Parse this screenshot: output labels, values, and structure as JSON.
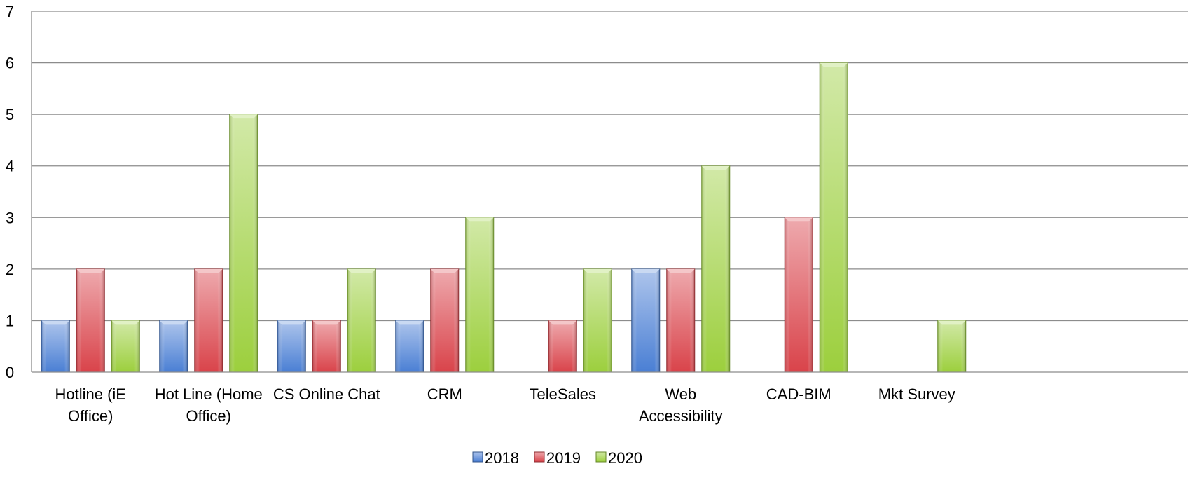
{
  "chart_data": {
    "type": "bar",
    "categories": [
      [
        "Hotline (iE",
        "Office)"
      ],
      [
        "Hot Line (Home",
        "Office)"
      ],
      [
        "CS Online Chat"
      ],
      [
        "CRM"
      ],
      [
        "TeleSales"
      ],
      [
        "Web",
        "Accessibility"
      ],
      [
        "CAD-BIM"
      ],
      [
        "Mkt Survey"
      ]
    ],
    "series": [
      {
        "name": "2018",
        "color": "#4a7fd4",
        "values": [
          1,
          1,
          1,
          1,
          null,
          2,
          null,
          null
        ]
      },
      {
        "name": "2019",
        "color": "#d9434a",
        "values": [
          2,
          2,
          1,
          2,
          1,
          2,
          3,
          null
        ]
      },
      {
        "name": "2020",
        "color": "#9ccf3d",
        "values": [
          1,
          5,
          2,
          3,
          2,
          4,
          6,
          1
        ]
      }
    ],
    "ylim": [
      0,
      7
    ],
    "yticks": [
      "0",
      "1",
      "2",
      "3",
      "4",
      "5",
      "6",
      "7"
    ],
    "grid": true,
    "legend_position": "bottom",
    "title": "",
    "xlabel": "",
    "ylabel": ""
  }
}
